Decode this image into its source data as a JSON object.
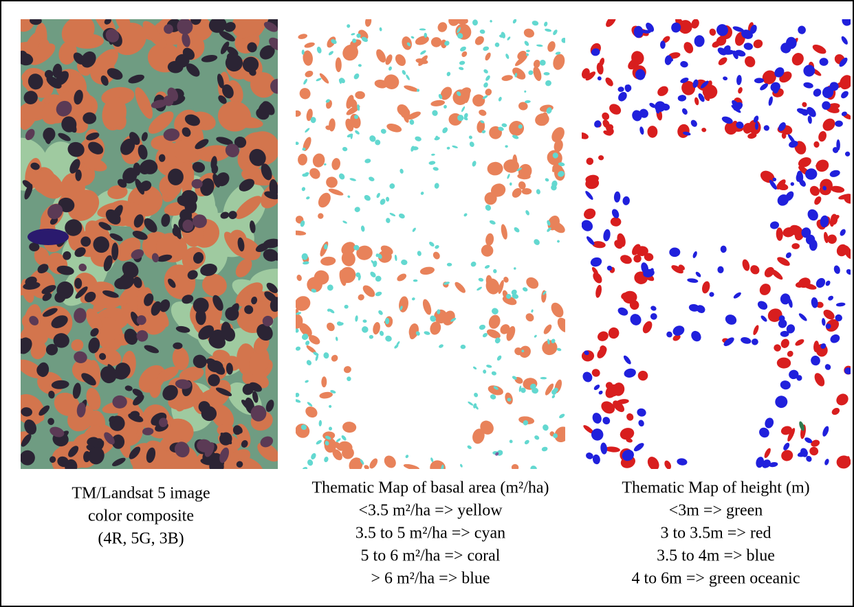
{
  "panels": [
    {
      "caption": [
        "TM/Landsat 5 image",
        "color composite",
        "(4R, 5G, 3B)"
      ]
    },
    {
      "caption": [
        "Thematic Map of basal area (m²/ha)",
        "<3.5 m²/ha => yellow",
        "3.5 to 5 m²/ha => cyan",
        "5 to 6 m²/ha => coral",
        "> 6 m²/ha => blue"
      ]
    },
    {
      "caption": [
        "Thematic Map of height (m)",
        "<3m => green",
        "3 to 3.5m => red",
        "3.5 to 4m => blue",
        "4 to 6m => green oceanic"
      ]
    }
  ]
}
